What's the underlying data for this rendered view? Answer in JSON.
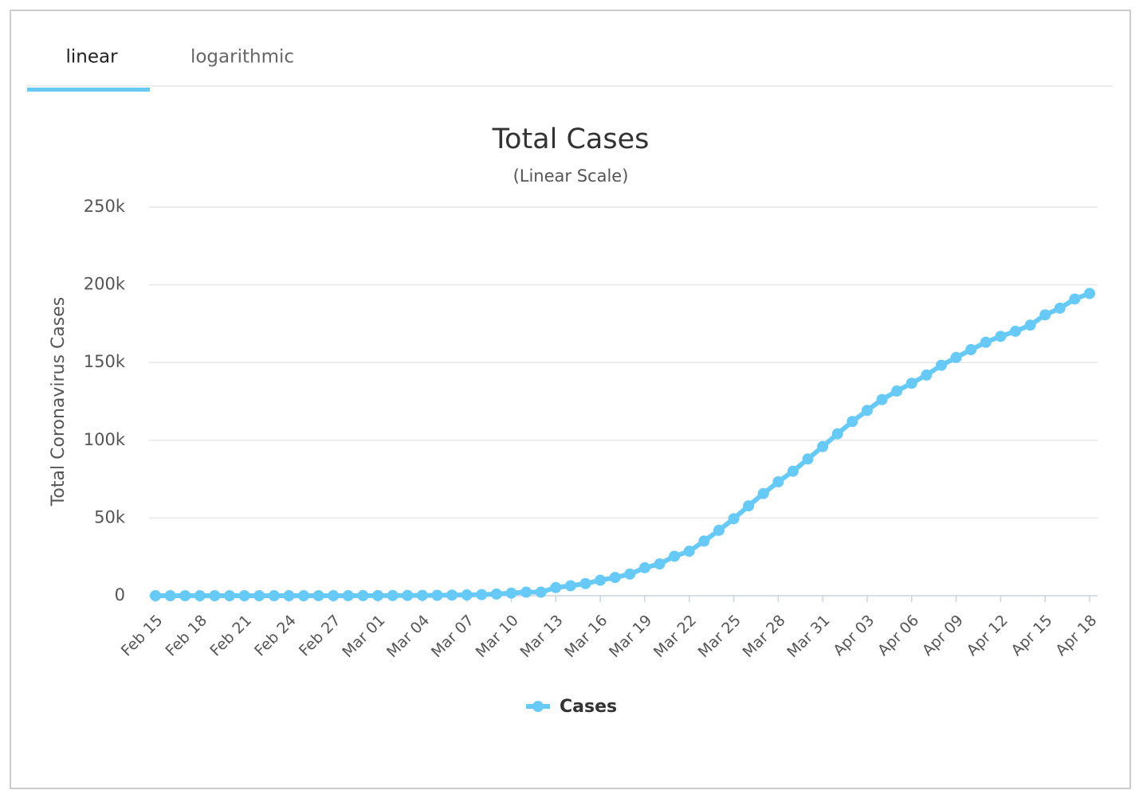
{
  "tabs": [
    "linear",
    "logarithmic"
  ],
  "chart_data": {
    "type": "line",
    "title": "Total Cases",
    "subtitle": "(Linear Scale)",
    "y_label": "Total Coronavirus Cases",
    "categories": [
      "Feb 15",
      null,
      null,
      "Feb 18",
      null,
      null,
      "Feb 21",
      null,
      null,
      "Feb 24",
      null,
      null,
      "Feb 27",
      null,
      null,
      "Mar 01",
      null,
      null,
      "Mar 04",
      null,
      null,
      "Mar 07",
      null,
      null,
      "Mar 10",
      null,
      null,
      "Mar 13",
      null,
      null,
      "Mar 16",
      null,
      null,
      "Mar 19",
      null,
      null,
      "Mar 22",
      null,
      null,
      "Mar 25",
      null,
      null,
      "Mar 28",
      null,
      null,
      "Mar 31",
      null,
      null,
      "Apr 03",
      null,
      null,
      "Apr 06",
      null,
      null,
      "Apr 09",
      null,
      null,
      "Apr 12",
      null,
      null,
      "Apr 15",
      null,
      null,
      "Apr 18"
    ],
    "series": [
      {
        "name": "Cases",
        "color": "#66c9f6",
        "values": [
          2,
          2,
          2,
          2,
          2,
          2,
          2,
          2,
          2,
          2,
          6,
          13,
          15,
          32,
          45,
          84,
          120,
          165,
          222,
          259,
          400,
          500,
          673,
          1073,
          1695,
          2277,
          2277,
          5232,
          6391,
          7798,
          9942,
          11748,
          13910,
          17963,
          20410,
          25374,
          28603,
          35136,
          42058,
          49515,
          57786,
          65719,
          73235,
          80110,
          87956,
          95923,
          104118,
          112065,
          119199,
          126168,
          131646,
          136675,
          141942,
          148220,
          153222,
          158273,
          163027,
          166831,
          170099,
          174060,
          180659,
          184948,
          190839,
          194416
        ]
      }
    ],
    "ylim": [
      0,
      250000
    ],
    "yticks": [
      0,
      {
        "value": 50000,
        "label": "50k"
      },
      {
        "value": 100000,
        "label": "100k"
      },
      {
        "value": 150000,
        "label": "150k"
      },
      {
        "value": 200000,
        "label": "200k"
      },
      {
        "value": 250000,
        "label": "250k"
      }
    ],
    "grid": true
  }
}
